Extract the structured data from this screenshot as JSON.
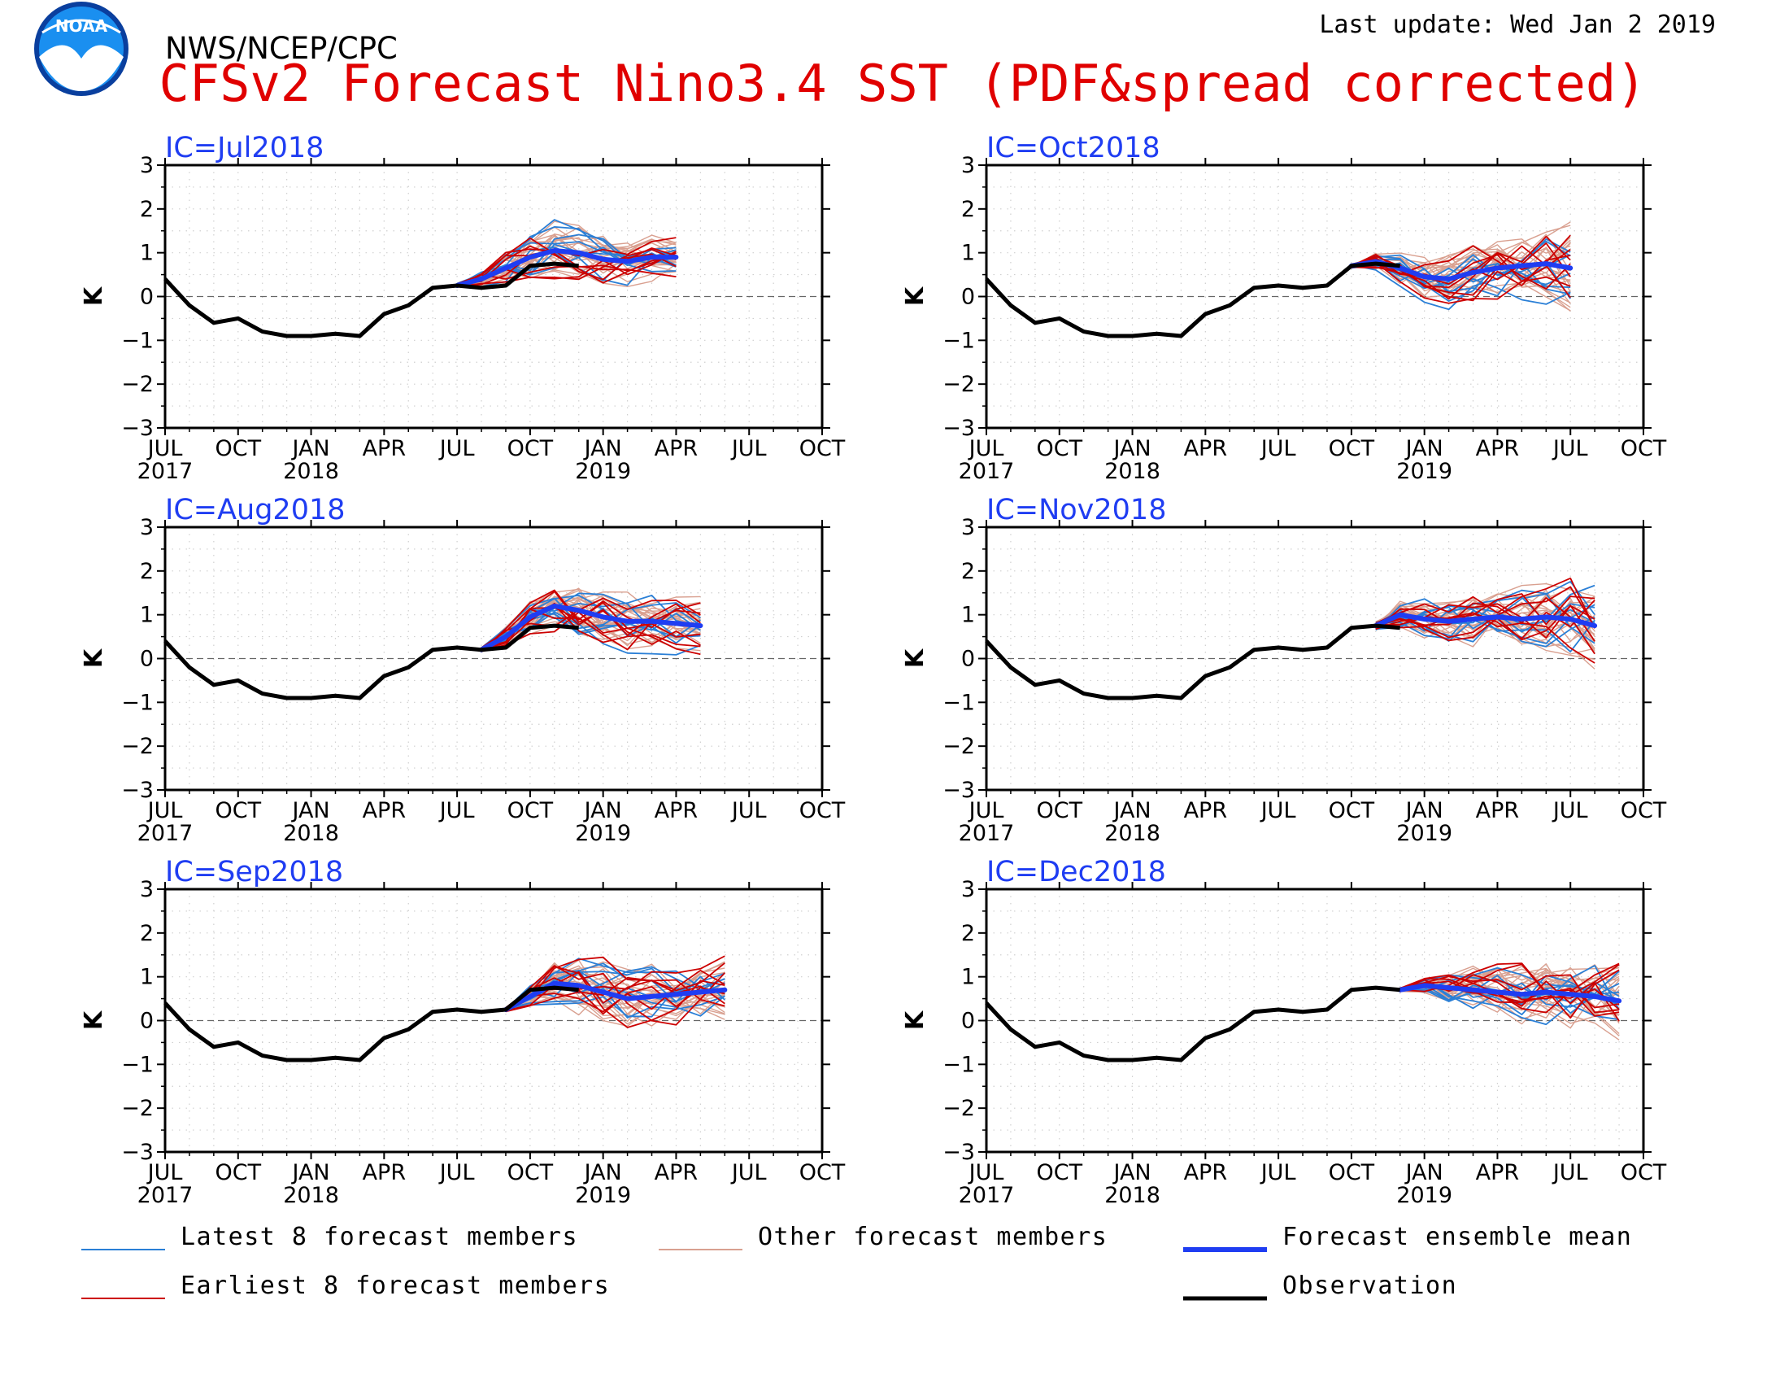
{
  "header": {
    "agency": "NWS/NCEP/CPC",
    "title": "CFSv2 Forecast Nino3.4 SST (PDF&spread corrected)",
    "last_update": "Last update: Wed Jan 2 2019",
    "logo_text": "NOAA"
  },
  "colors": {
    "title": "#e00000",
    "panel_title": "#1f3df2",
    "latest": "#2a7fd6",
    "other": "#d9a090",
    "earliest": "#cc0000",
    "mean": "#1f3df2",
    "obs": "#000000"
  },
  "legend": [
    {
      "key": "latest",
      "label": "Latest 8 forecast members"
    },
    {
      "key": "other",
      "label": "Other forecast members"
    },
    {
      "key": "mean",
      "label": "Forecast ensemble mean"
    },
    {
      "key": "earliest",
      "label": "Earliest 8 forecast members"
    },
    {
      "key": "obs",
      "label": "Observation"
    }
  ],
  "chart_data": {
    "type": "line",
    "ylabel": "K",
    "ylim": [
      -3,
      3
    ],
    "yticks": [
      -3,
      -2,
      -1,
      0,
      1,
      2,
      3
    ],
    "xlim": [
      "2017-07",
      "2019-10"
    ],
    "xticks": [
      {
        "month": "2017-07",
        "label": "JUL",
        "year": "2017"
      },
      {
        "month": "2017-10",
        "label": "OCT",
        "year": ""
      },
      {
        "month": "2018-01",
        "label": "JAN",
        "year": "2018"
      },
      {
        "month": "2018-04",
        "label": "APR",
        "year": ""
      },
      {
        "month": "2018-07",
        "label": "JUL",
        "year": ""
      },
      {
        "month": "2018-10",
        "label": "OCT",
        "year": ""
      },
      {
        "month": "2019-01",
        "label": "JAN",
        "year": "2019"
      },
      {
        "month": "2019-04",
        "label": "APR",
        "year": ""
      },
      {
        "month": "2019-07",
        "label": "JUL",
        "year": ""
      },
      {
        "month": "2019-10",
        "label": "OCT",
        "year": ""
      }
    ],
    "observation": {
      "months": [
        "2017-07",
        "2017-08",
        "2017-09",
        "2017-10",
        "2017-11",
        "2017-12",
        "2018-01",
        "2018-02",
        "2018-03",
        "2018-04",
        "2018-05",
        "2018-06",
        "2018-07",
        "2018-08",
        "2018-09",
        "2018-10",
        "2018-11",
        "2018-12"
      ],
      "values": [
        0.4,
        -0.2,
        -0.6,
        -0.5,
        -0.8,
        -0.9,
        -0.9,
        -0.85,
        -0.9,
        -0.4,
        -0.2,
        0.2,
        0.25,
        0.2,
        0.25,
        0.7,
        0.75,
        0.7
      ]
    },
    "panels": [
      {
        "ic": "IC=Jul2018",
        "obs_end": "2018-12",
        "forecast_start": "2018-07",
        "mean": [
          0.25,
          0.4,
          0.65,
          0.9,
          1.05,
          1.0,
          0.85,
          0.8,
          0.9,
          0.9
        ],
        "spread": [
          0.05,
          0.2,
          0.35,
          0.5,
          0.55,
          0.5,
          0.45,
          0.4,
          0.35,
          0.3
        ]
      },
      {
        "ic": "IC=Oct2018",
        "obs_end": "2018-12",
        "forecast_start": "2018-10",
        "mean": [
          0.7,
          0.8,
          0.65,
          0.45,
          0.4,
          0.55,
          0.65,
          0.7,
          0.75,
          0.65
        ],
        "spread": [
          0.05,
          0.2,
          0.35,
          0.45,
          0.5,
          0.5,
          0.55,
          0.6,
          0.7,
          0.85
        ]
      },
      {
        "ic": "IC=Aug2018",
        "obs_end": "2018-12",
        "forecast_start": "2018-08",
        "mean": [
          0.2,
          0.5,
          0.95,
          1.2,
          1.1,
          0.95,
          0.85,
          0.85,
          0.8,
          0.75
        ],
        "spread": [
          0.05,
          0.25,
          0.35,
          0.45,
          0.55,
          0.55,
          0.5,
          0.45,
          0.45,
          0.4
        ]
      },
      {
        "ic": "IC=Nov2018",
        "obs_end": "2018-12",
        "forecast_start": "2018-11",
        "mean": [
          0.75,
          1.0,
          0.9,
          0.85,
          0.9,
          0.95,
          0.9,
          0.95,
          0.9,
          0.75
        ],
        "spread": [
          0.1,
          0.3,
          0.4,
          0.45,
          0.5,
          0.5,
          0.55,
          0.6,
          0.7,
          0.8
        ]
      },
      {
        "ic": "IC=Sep2018",
        "obs_end": "2018-12",
        "forecast_start": "2018-09",
        "mean": [
          0.25,
          0.55,
          0.85,
          0.8,
          0.65,
          0.5,
          0.55,
          0.6,
          0.65,
          0.7
        ],
        "spread": [
          0.05,
          0.25,
          0.45,
          0.55,
          0.6,
          0.6,
          0.55,
          0.5,
          0.55,
          0.55
        ]
      },
      {
        "ic": "IC=Dec2018",
        "obs_end": "2018-12",
        "forecast_start": "2018-12",
        "mean": [
          0.7,
          0.8,
          0.75,
          0.7,
          0.65,
          0.6,
          0.65,
          0.6,
          0.55,
          0.45
        ],
        "spread": [
          0.05,
          0.2,
          0.35,
          0.45,
          0.5,
          0.55,
          0.6,
          0.65,
          0.7,
          0.75
        ]
      }
    ]
  }
}
